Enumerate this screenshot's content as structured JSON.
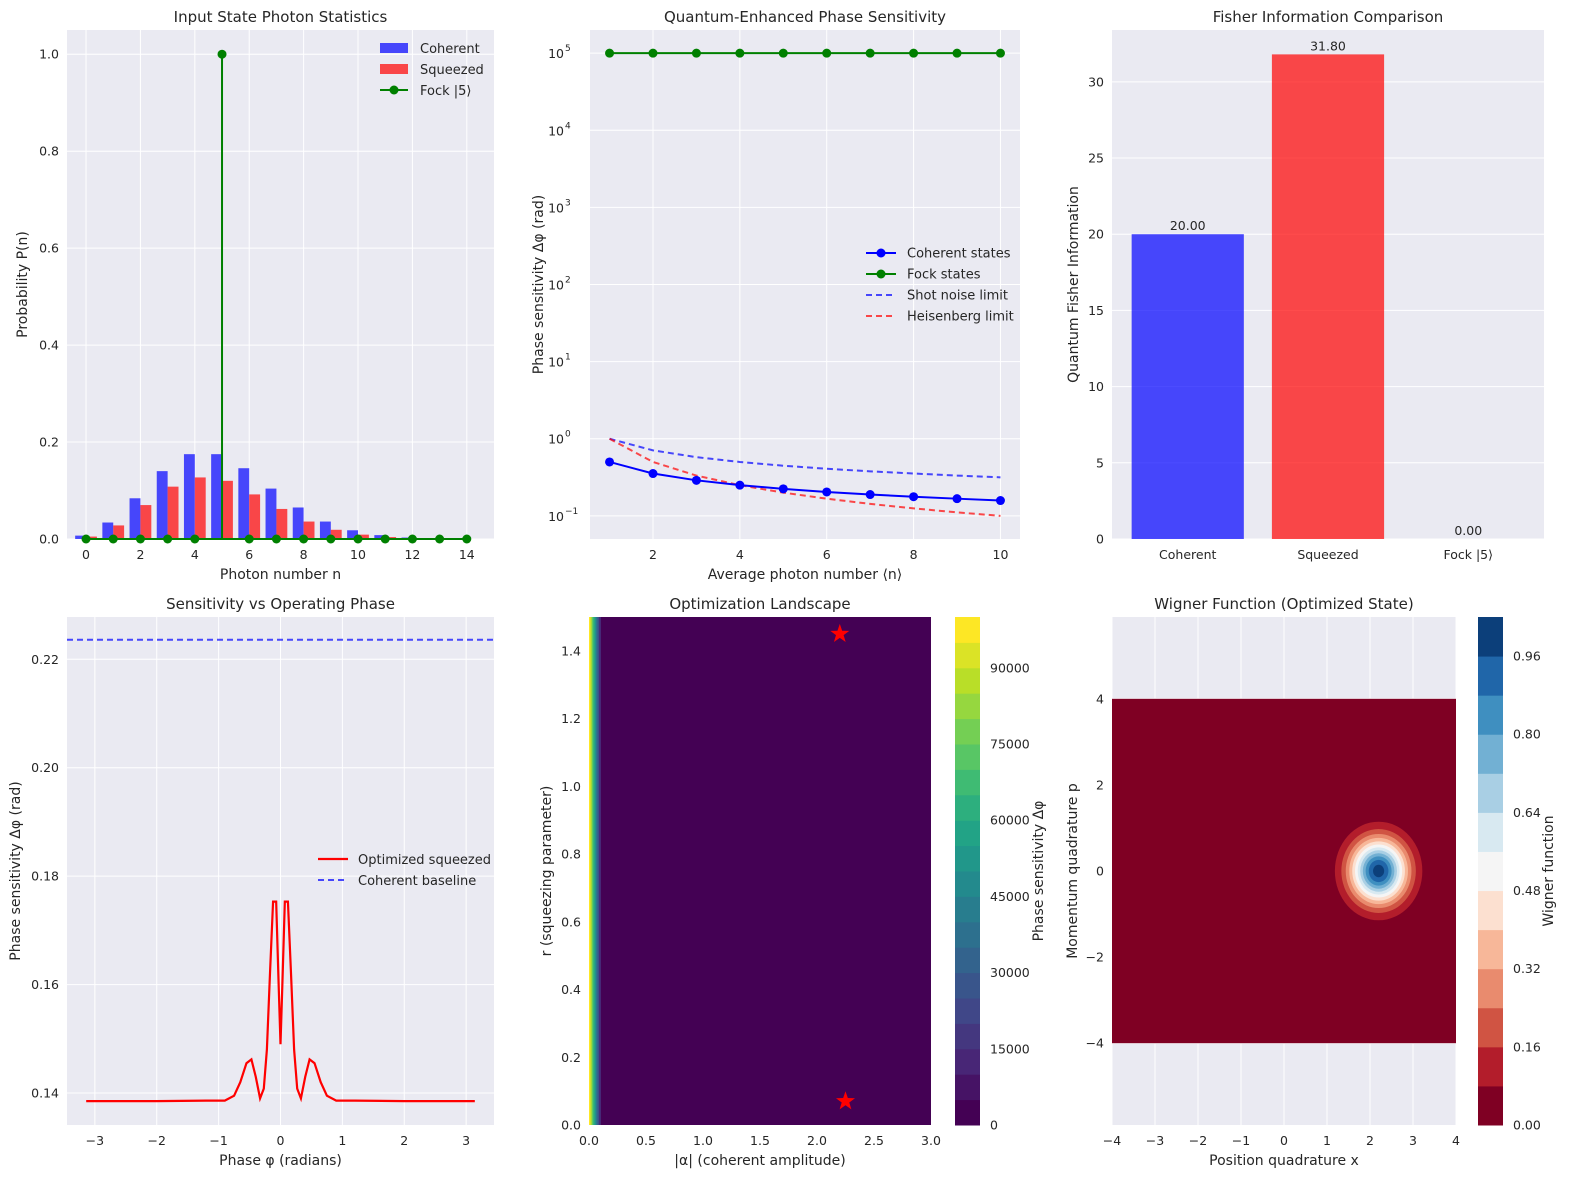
{
  "colors": {
    "background": "#eaeaf2",
    "grid": "#ffffff",
    "blue": "#0000ff",
    "red": "#ff0000",
    "green": "#008000",
    "viridis_low": "#440154",
    "viridis_high": "#fde725"
  },
  "chart_data": [
    {
      "id": "photon-stats",
      "type": "bar",
      "title": "Input State Photon Statistics",
      "xlabel": "Photon number n",
      "ylabel": "Probability P(n)",
      "xlim": [
        -0.7,
        15.0
      ],
      "ylim": [
        0,
        1.05
      ],
      "xticks": [
        0,
        2,
        4,
        6,
        8,
        10,
        12,
        14
      ],
      "yticks": [
        0.0,
        0.2,
        0.4,
        0.6,
        0.8,
        1.0
      ],
      "yticklabels": [
        "0.0",
        "0.2",
        "0.4",
        "0.6",
        "0.8",
        "1.0"
      ],
      "legend": [
        "Coherent",
        "Squeezed",
        "Fock |5⟩"
      ],
      "n": [
        0,
        1,
        2,
        3,
        4,
        5,
        6,
        7,
        8,
        9,
        10,
        11,
        12,
        13,
        14
      ],
      "series": [
        {
          "name": "Coherent",
          "values": [
            0.007,
            0.034,
            0.084,
            0.14,
            0.175,
            0.175,
            0.146,
            0.104,
            0.065,
            0.036,
            0.018,
            0.008,
            0.003,
            0.001,
            0.0
          ]
        },
        {
          "name": "Squeezed",
          "values": [
            0.005,
            0.028,
            0.07,
            0.108,
            0.127,
            0.12,
            0.092,
            0.062,
            0.036,
            0.019,
            0.009,
            0.004,
            0.002,
            0.001,
            0.0
          ]
        },
        {
          "name": "Fock |5⟩",
          "values": [
            0,
            0,
            0,
            0,
            0,
            1.0,
            0,
            0,
            0,
            0,
            0,
            0,
            0,
            0,
            0
          ]
        }
      ]
    },
    {
      "id": "sensitivity-scaling",
      "type": "line",
      "title": "Quantum-Enhanced Phase Sensitivity",
      "xlabel": "Average photon number ⟨n⟩",
      "ylabel": "Phase sensitivity Δφ (rad)",
      "xlim": [
        0.55,
        10.45
      ],
      "ylim_log10": [
        -1.3,
        5.3
      ],
      "xticks": [
        2,
        4,
        6,
        8,
        10
      ],
      "ytick_exponents": [
        -1,
        0,
        1,
        2,
        3,
        4,
        5
      ],
      "legend": [
        "Coherent states",
        "Fock states",
        "Shot noise limit",
        "Heisenberg limit"
      ],
      "x": [
        1,
        2,
        3,
        4,
        5,
        6,
        7,
        8,
        9,
        10
      ],
      "series": [
        {
          "name": "Coherent states",
          "values": [
            0.5,
            0.354,
            0.289,
            0.25,
            0.224,
            0.204,
            0.189,
            0.177,
            0.167,
            0.158
          ]
        },
        {
          "name": "Fock states",
          "values": [
            100000,
            100000,
            100000,
            100000,
            100000,
            100000,
            100000,
            100000,
            100000,
            100000
          ]
        },
        {
          "name": "Shot noise limit",
          "values": [
            1.0,
            0.707,
            0.577,
            0.5,
            0.447,
            0.408,
            0.378,
            0.354,
            0.333,
            0.316
          ]
        },
        {
          "name": "Heisenberg limit",
          "values": [
            1.0,
            0.5,
            0.333,
            0.25,
            0.2,
            0.167,
            0.143,
            0.125,
            0.111,
            0.1
          ]
        }
      ]
    },
    {
      "id": "fisher-info",
      "type": "bar",
      "title": "Fisher Information Comparison",
      "xlabel": "",
      "ylabel": "Quantum Fisher Information",
      "ylim": [
        0,
        33.4
      ],
      "yticks": [
        0,
        5,
        10,
        15,
        20,
        25,
        30
      ],
      "categories": [
        "Coherent",
        "Squeezed",
        "Fock |5⟩"
      ],
      "values": [
        20.0,
        31.8,
        0.0
      ],
      "labels": [
        "20.00",
        "31.80",
        "0.00"
      ]
    },
    {
      "id": "phase-sweep",
      "type": "line",
      "title": "Sensitivity vs Operating Phase",
      "xlabel": "Phase φ (radians)",
      "ylabel": "Phase sensitivity Δφ (rad)",
      "xlim": [
        -3.45,
        3.45
      ],
      "ylim": [
        0.1341,
        0.2278
      ],
      "xticks": [
        -3,
        -2,
        -1,
        0,
        1,
        2,
        3
      ],
      "xticklabels": [
        "−3",
        "−2",
        "−1",
        "0",
        "1",
        "2",
        "3"
      ],
      "yticks": [
        0.14,
        0.16,
        0.18,
        0.2,
        0.22
      ],
      "yticklabels": [
        "0.14",
        "0.16",
        "0.18",
        "0.20",
        "0.22"
      ],
      "legend": [
        "Optimized squeezed",
        "Coherent baseline"
      ],
      "x": [
        -3.14,
        -2.0,
        -1.2,
        -0.9,
        -0.75,
        -0.65,
        -0.55,
        -0.47,
        -0.4,
        -0.33,
        -0.27,
        -0.22,
        -0.17,
        -0.12,
        -0.07,
        -0.03,
        0.0,
        0.03,
        0.07,
        0.12,
        0.17,
        0.22,
        0.27,
        0.33,
        0.4,
        0.47,
        0.55,
        0.65,
        0.75,
        0.9,
        1.2,
        2.0,
        3.14
      ],
      "series": [
        {
          "name": "Optimized squeezed",
          "values": [
            0.1385,
            0.1385,
            0.1386,
            0.1386,
            0.1395,
            0.142,
            0.1455,
            0.1462,
            0.143,
            0.139,
            0.1408,
            0.148,
            0.162,
            0.1753,
            0.1753,
            0.16,
            0.149,
            0.16,
            0.1753,
            0.1753,
            0.162,
            0.148,
            0.1408,
            0.139,
            0.143,
            0.1462,
            0.1455,
            0.142,
            0.1395,
            0.1386,
            0.1386,
            0.1385,
            0.1385
          ]
        },
        {
          "name": "Coherent baseline",
          "constant": 0.2236
        }
      ]
    },
    {
      "id": "optimization-landscape",
      "type": "heatmap",
      "title": "Optimization Landscape",
      "xlabel": "|α| (coherent amplitude)",
      "ylabel": "r (squeezing parameter)",
      "xlim": [
        0,
        3.0
      ],
      "ylim": [
        0,
        1.5
      ],
      "xticks": [
        0.0,
        0.5,
        1.0,
        1.5,
        2.0,
        2.5,
        3.0
      ],
      "xticklabels": [
        "0.0",
        "0.5",
        "1.0",
        "1.5",
        "2.0",
        "2.5",
        "3.0"
      ],
      "yticks": [
        0.0,
        0.2,
        0.4,
        0.6,
        0.8,
        1.0,
        1.2,
        1.4
      ],
      "yticklabels": [
        "0.0",
        "0.2",
        "0.4",
        "0.6",
        "0.8",
        "1.0",
        "1.2",
        "1.4"
      ],
      "high_region_alpha_max": 0.1,
      "markers": [
        {
          "alpha": 2.2,
          "r": 1.45
        },
        {
          "alpha": 2.25,
          "r": 0.07
        }
      ],
      "colorbar": {
        "label": "Phase sensitivity Δφ",
        "range": [
          0,
          100000
        ],
        "levels": 20,
        "ticks": [
          0,
          15000,
          30000,
          45000,
          60000,
          75000,
          90000
        ]
      }
    },
    {
      "id": "wigner",
      "type": "heatmap",
      "title": "Wigner Function (Optimized State)",
      "xlabel": "Position quadrature x",
      "ylabel": "Momentum quadrature p",
      "xlim": [
        -4,
        4
      ],
      "ylim": [
        -5.9,
        5.9
      ],
      "xticks": [
        -4,
        -3,
        -2,
        -1,
        0,
        1,
        2,
        3,
        4
      ],
      "xticklabels": [
        "−4",
        "−3",
        "−2",
        "−1",
        "0",
        "1",
        "2",
        "3",
        "4"
      ],
      "yticks": [
        -4,
        -2,
        0,
        2,
        4
      ],
      "yticklabels": [
        "−4",
        "−2",
        "0",
        "2",
        "4"
      ],
      "grid_extent": [
        -4,
        4
      ],
      "center": {
        "x": 2.2,
        "p": 0.0
      },
      "widths": {
        "x": 0.64,
        "p": 0.72
      },
      "colorbar": {
        "label": "Wigner function",
        "range": [
          0,
          1.04
        ],
        "levels": 13,
        "ticks": [
          0.0,
          0.16,
          0.32,
          0.48,
          0.64,
          0.8,
          0.96
        ],
        "ticklabels": [
          "0.00",
          "0.16",
          "0.32",
          "0.48",
          "0.64",
          "0.80",
          "0.96"
        ]
      }
    }
  ]
}
